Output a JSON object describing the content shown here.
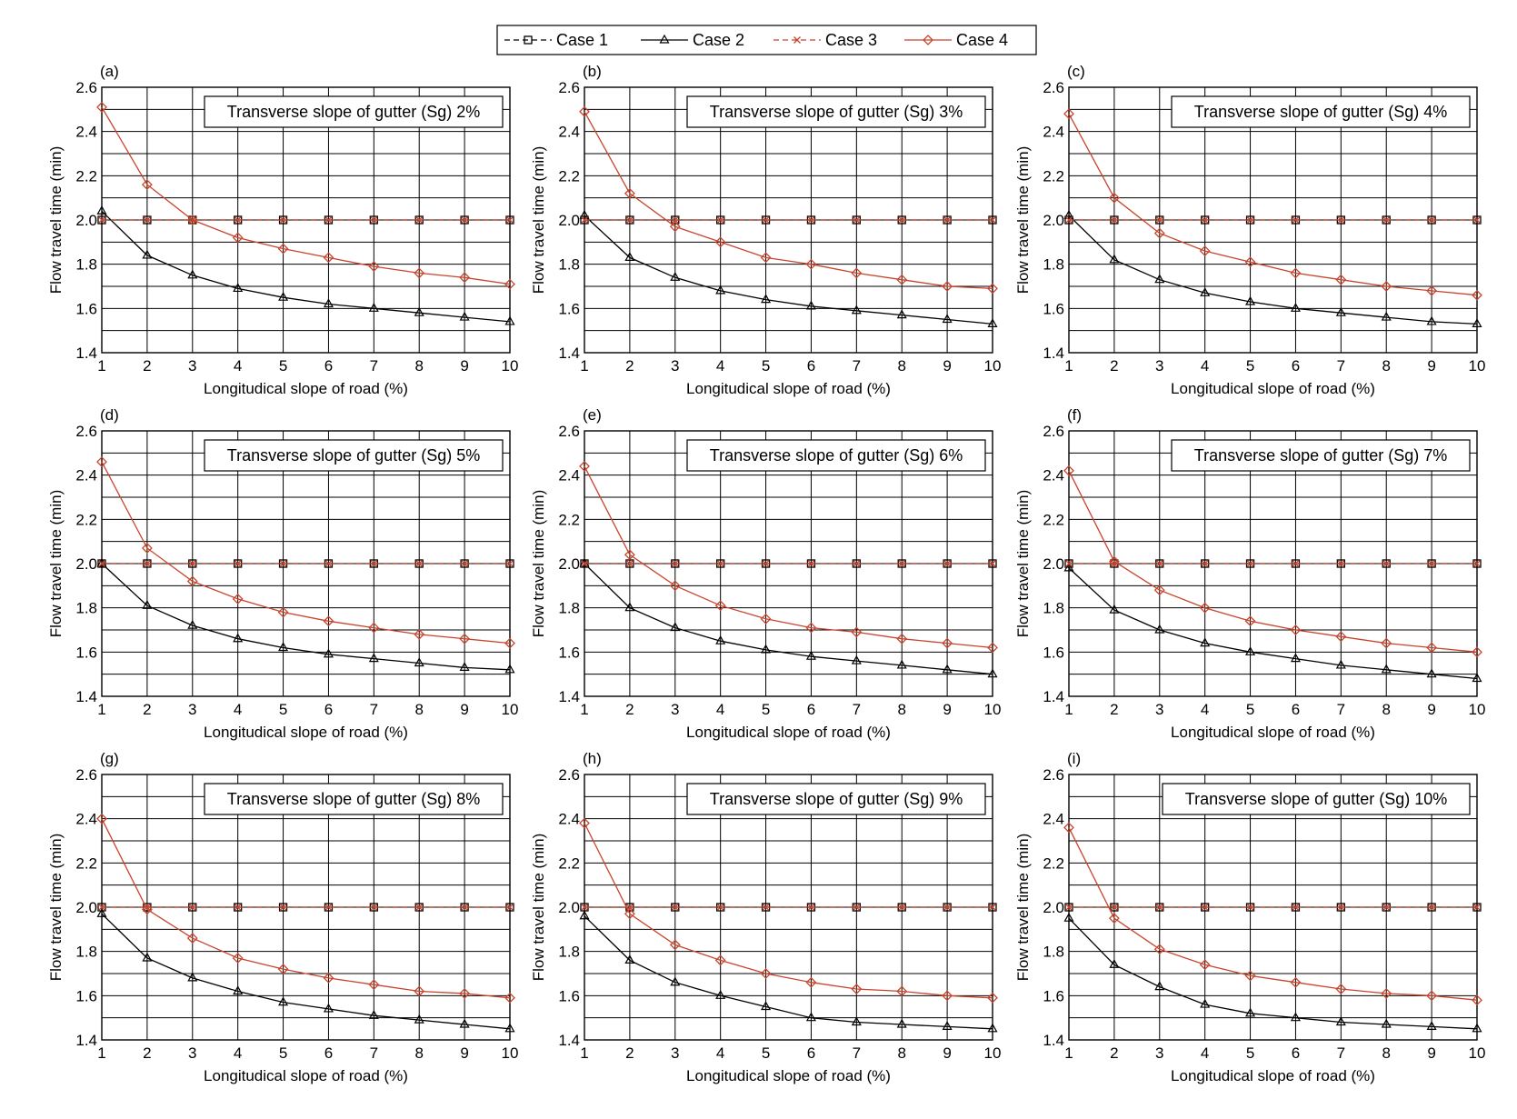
{
  "figure": {
    "legend": {
      "entries": [
        {
          "name": "Case 1",
          "color": "#000000",
          "dash": true,
          "marker": "square"
        },
        {
          "name": "Case 2",
          "color": "#000000",
          "dash": false,
          "marker": "triangle"
        },
        {
          "name": "Case 3",
          "color": "#c8442c",
          "dash": true,
          "marker": "x"
        },
        {
          "name": "Case 4",
          "color": "#c8442c",
          "dash": false,
          "marker": "diamond"
        }
      ]
    },
    "colors": {
      "black": "#000000",
      "red": "#c8442c",
      "grid": "#000000",
      "background": "#ffffff"
    }
  },
  "chart_data": [
    {
      "type": "line",
      "panel": "(a)",
      "title": "Transverse slope of gutter (Sg) 2%",
      "xlabel": "Longitudical slope of road (%)",
      "ylabel": "Flow travel time (min)",
      "xlim": [
        1,
        10
      ],
      "ylim": [
        1.4,
        2.6
      ],
      "x": [
        1,
        2,
        3,
        4,
        5,
        6,
        7,
        8,
        9,
        10
      ],
      "xticks": [
        "1",
        "2",
        "3",
        "4",
        "5",
        "6",
        "7",
        "8",
        "9",
        "10"
      ],
      "yticks": [
        "1.4",
        "1.6",
        "1.8",
        "2.0",
        "2.2",
        "2.4",
        "2.6"
      ],
      "series": [
        {
          "name": "Case 1",
          "values": [
            2.0,
            2.0,
            2.0,
            2.0,
            2.0,
            2.0,
            2.0,
            2.0,
            2.0,
            2.0
          ]
        },
        {
          "name": "Case 2",
          "values": [
            2.04,
            1.84,
            1.75,
            1.69,
            1.65,
            1.62,
            1.6,
            1.58,
            1.56,
            1.54
          ]
        },
        {
          "name": "Case 3",
          "values": [
            2.0,
            2.0,
            2.0,
            2.0,
            2.0,
            2.0,
            2.0,
            2.0,
            2.0,
            2.0
          ]
        },
        {
          "name": "Case 4",
          "values": [
            2.51,
            2.16,
            2.0,
            1.92,
            1.87,
            1.83,
            1.79,
            1.76,
            1.74,
            1.71
          ]
        }
      ]
    },
    {
      "type": "line",
      "panel": "(b)",
      "title": "Transverse slope of gutter (Sg) 3%",
      "xlabel": "Longitudical slope of road (%)",
      "ylabel": "Flow travel time (min)",
      "xlim": [
        1,
        10
      ],
      "ylim": [
        1.4,
        2.6
      ],
      "x": [
        1,
        2,
        3,
        4,
        5,
        6,
        7,
        8,
        9,
        10
      ],
      "xticks": [
        "1",
        "2",
        "3",
        "4",
        "5",
        "6",
        "7",
        "8",
        "9",
        "10"
      ],
      "yticks": [
        "1.4",
        "1.6",
        "1.8",
        "2.0",
        "2.2",
        "2.4",
        "2.6"
      ],
      "series": [
        {
          "name": "Case 1",
          "values": [
            2.0,
            2.0,
            2.0,
            2.0,
            2.0,
            2.0,
            2.0,
            2.0,
            2.0,
            2.0
          ]
        },
        {
          "name": "Case 2",
          "values": [
            2.02,
            1.83,
            1.74,
            1.68,
            1.64,
            1.61,
            1.59,
            1.57,
            1.55,
            1.53
          ]
        },
        {
          "name": "Case 3",
          "values": [
            2.0,
            2.0,
            2.0,
            2.0,
            2.0,
            2.0,
            2.0,
            2.0,
            2.0,
            2.0
          ]
        },
        {
          "name": "Case 4",
          "values": [
            2.49,
            2.12,
            1.97,
            1.9,
            1.83,
            1.8,
            1.76,
            1.73,
            1.7,
            1.69
          ]
        }
      ]
    },
    {
      "type": "line",
      "panel": "(c)",
      "title": "Transverse slope of gutter (Sg) 4%",
      "xlabel": "Longitudical slope of road (%)",
      "ylabel": "Flow travel time (min)",
      "xlim": [
        1,
        10
      ],
      "ylim": [
        1.4,
        2.6
      ],
      "x": [
        1,
        2,
        3,
        4,
        5,
        6,
        7,
        8,
        9,
        10
      ],
      "xticks": [
        "1",
        "2",
        "3",
        "4",
        "5",
        "6",
        "7",
        "8",
        "9",
        "10"
      ],
      "yticks": [
        "1.4",
        "1.6",
        "1.8",
        "2.0",
        "2.2",
        "2.4",
        "2.6"
      ],
      "series": [
        {
          "name": "Case 1",
          "values": [
            2.0,
            2.0,
            2.0,
            2.0,
            2.0,
            2.0,
            2.0,
            2.0,
            2.0,
            2.0
          ]
        },
        {
          "name": "Case 2",
          "values": [
            2.02,
            1.82,
            1.73,
            1.67,
            1.63,
            1.6,
            1.58,
            1.56,
            1.54,
            1.53
          ]
        },
        {
          "name": "Case 3",
          "values": [
            2.0,
            2.0,
            2.0,
            2.0,
            2.0,
            2.0,
            2.0,
            2.0,
            2.0,
            2.0
          ]
        },
        {
          "name": "Case 4",
          "values": [
            2.48,
            2.1,
            1.94,
            1.86,
            1.81,
            1.76,
            1.73,
            1.7,
            1.68,
            1.66
          ]
        }
      ]
    },
    {
      "type": "line",
      "panel": "(d)",
      "title": "Transverse slope of gutter (Sg) 5%",
      "xlabel": "Longitudical slope of road (%)",
      "ylabel": "Flow travel time (min)",
      "xlim": [
        1,
        10
      ],
      "ylim": [
        1.4,
        2.6
      ],
      "x": [
        1,
        2,
        3,
        4,
        5,
        6,
        7,
        8,
        9,
        10
      ],
      "xticks": [
        "1",
        "2",
        "3",
        "4",
        "5",
        "6",
        "7",
        "8",
        "9",
        "10"
      ],
      "yticks": [
        "1.4",
        "1.6",
        "1.8",
        "2.0",
        "2.2",
        "2.4",
        "2.6"
      ],
      "series": [
        {
          "name": "Case 1",
          "values": [
            2.0,
            2.0,
            2.0,
            2.0,
            2.0,
            2.0,
            2.0,
            2.0,
            2.0,
            2.0
          ]
        },
        {
          "name": "Case 2",
          "values": [
            2.0,
            1.81,
            1.72,
            1.66,
            1.62,
            1.59,
            1.57,
            1.55,
            1.53,
            1.52
          ]
        },
        {
          "name": "Case 3",
          "values": [
            2.0,
            2.0,
            2.0,
            2.0,
            2.0,
            2.0,
            2.0,
            2.0,
            2.0,
            2.0
          ]
        },
        {
          "name": "Case 4",
          "values": [
            2.46,
            2.07,
            1.92,
            1.84,
            1.78,
            1.74,
            1.71,
            1.68,
            1.66,
            1.64
          ]
        }
      ]
    },
    {
      "type": "line",
      "panel": "(e)",
      "title": "Transverse slope of gutter (Sg) 6%",
      "xlabel": "Longitudical slope of road (%)",
      "ylabel": "Flow travel time (min)",
      "xlim": [
        1,
        10
      ],
      "ylim": [
        1.4,
        2.6
      ],
      "x": [
        1,
        2,
        3,
        4,
        5,
        6,
        7,
        8,
        9,
        10
      ],
      "xticks": [
        "1",
        "2",
        "3",
        "4",
        "5",
        "6",
        "7",
        "8",
        "9",
        "10"
      ],
      "yticks": [
        "1.4",
        "1.6",
        "1.8",
        "2.0",
        "2.2",
        "2.4",
        "2.6"
      ],
      "series": [
        {
          "name": "Case 1",
          "values": [
            2.0,
            2.0,
            2.0,
            2.0,
            2.0,
            2.0,
            2.0,
            2.0,
            2.0,
            2.0
          ]
        },
        {
          "name": "Case 2",
          "values": [
            2.0,
            1.8,
            1.71,
            1.65,
            1.61,
            1.58,
            1.56,
            1.54,
            1.52,
            1.5
          ]
        },
        {
          "name": "Case 3",
          "values": [
            2.0,
            2.0,
            2.0,
            2.0,
            2.0,
            2.0,
            2.0,
            2.0,
            2.0,
            2.0
          ]
        },
        {
          "name": "Case 4",
          "values": [
            2.44,
            2.04,
            1.9,
            1.81,
            1.75,
            1.71,
            1.69,
            1.66,
            1.64,
            1.62
          ]
        }
      ]
    },
    {
      "type": "line",
      "panel": "(f)",
      "title": "Transverse slope of gutter (Sg) 7%",
      "xlabel": "Longitudical slope of road (%)",
      "ylabel": "Flow travel time (min)",
      "xlim": [
        1,
        10
      ],
      "ylim": [
        1.4,
        2.6
      ],
      "x": [
        1,
        2,
        3,
        4,
        5,
        6,
        7,
        8,
        9,
        10
      ],
      "xticks": [
        "1",
        "2",
        "3",
        "4",
        "5",
        "6",
        "7",
        "8",
        "9",
        "10"
      ],
      "yticks": [
        "1.4",
        "1.6",
        "1.8",
        "2.0",
        "2.2",
        "2.4",
        "2.6"
      ],
      "series": [
        {
          "name": "Case 1",
          "values": [
            2.0,
            2.0,
            2.0,
            2.0,
            2.0,
            2.0,
            2.0,
            2.0,
            2.0,
            2.0
          ]
        },
        {
          "name": "Case 2",
          "values": [
            1.98,
            1.79,
            1.7,
            1.64,
            1.6,
            1.57,
            1.54,
            1.52,
            1.5,
            1.48
          ]
        },
        {
          "name": "Case 3",
          "values": [
            2.0,
            2.0,
            2.0,
            2.0,
            2.0,
            2.0,
            2.0,
            2.0,
            2.0,
            2.0
          ]
        },
        {
          "name": "Case 4",
          "values": [
            2.42,
            2.01,
            1.88,
            1.8,
            1.74,
            1.7,
            1.67,
            1.64,
            1.62,
            1.6
          ]
        }
      ]
    },
    {
      "type": "line",
      "panel": "(g)",
      "title": "Transverse slope of gutter (Sg) 8%",
      "xlabel": "Longitudical slope of road (%)",
      "ylabel": "Flow travel time (min)",
      "xlim": [
        1,
        10
      ],
      "ylim": [
        1.4,
        2.6
      ],
      "x": [
        1,
        2,
        3,
        4,
        5,
        6,
        7,
        8,
        9,
        10
      ],
      "xticks": [
        "1",
        "2",
        "3",
        "4",
        "5",
        "6",
        "7",
        "8",
        "9",
        "10"
      ],
      "yticks": [
        "1.4",
        "1.6",
        "1.8",
        "2.0",
        "2.2",
        "2.4",
        "2.6"
      ],
      "series": [
        {
          "name": "Case 1",
          "values": [
            2.0,
            2.0,
            2.0,
            2.0,
            2.0,
            2.0,
            2.0,
            2.0,
            2.0,
            2.0
          ]
        },
        {
          "name": "Case 2",
          "values": [
            1.97,
            1.77,
            1.68,
            1.62,
            1.57,
            1.54,
            1.51,
            1.49,
            1.47,
            1.45
          ]
        },
        {
          "name": "Case 3",
          "values": [
            2.0,
            2.0,
            2.0,
            2.0,
            2.0,
            2.0,
            2.0,
            2.0,
            2.0,
            2.0
          ]
        },
        {
          "name": "Case 4",
          "values": [
            2.4,
            1.99,
            1.86,
            1.77,
            1.72,
            1.68,
            1.65,
            1.62,
            1.61,
            1.59
          ]
        }
      ]
    },
    {
      "type": "line",
      "panel": "(h)",
      "title": "Transverse slope of gutter (Sg) 9%",
      "xlabel": "Longitudical slope of road (%)",
      "ylabel": "Flow travel time (min)",
      "xlim": [
        1,
        10
      ],
      "ylim": [
        1.4,
        2.6
      ],
      "x": [
        1,
        2,
        3,
        4,
        5,
        6,
        7,
        8,
        9,
        10
      ],
      "xticks": [
        "1",
        "2",
        "3",
        "4",
        "5",
        "6",
        "7",
        "8",
        "9",
        "10"
      ],
      "yticks": [
        "1.4",
        "1.6",
        "1.8",
        "2.0",
        "2.2",
        "2.4",
        "2.6"
      ],
      "series": [
        {
          "name": "Case 1",
          "values": [
            2.0,
            2.0,
            2.0,
            2.0,
            2.0,
            2.0,
            2.0,
            2.0,
            2.0,
            2.0
          ]
        },
        {
          "name": "Case 2",
          "values": [
            1.96,
            1.76,
            1.66,
            1.6,
            1.55,
            1.5,
            1.48,
            1.47,
            1.46,
            1.45
          ]
        },
        {
          "name": "Case 3",
          "values": [
            2.0,
            2.0,
            2.0,
            2.0,
            2.0,
            2.0,
            2.0,
            2.0,
            2.0,
            2.0
          ]
        },
        {
          "name": "Case 4",
          "values": [
            2.38,
            1.97,
            1.83,
            1.76,
            1.7,
            1.66,
            1.63,
            1.62,
            1.6,
            1.59
          ]
        }
      ]
    },
    {
      "type": "line",
      "panel": "(i)",
      "title": "Transverse slope of gutter (Sg) 10%",
      "xlabel": "Longitudical slope of road (%)",
      "ylabel": "Flow travel time (min)",
      "xlim": [
        1,
        10
      ],
      "ylim": [
        1.4,
        2.6
      ],
      "x": [
        1,
        2,
        3,
        4,
        5,
        6,
        7,
        8,
        9,
        10
      ],
      "xticks": [
        "1",
        "2",
        "3",
        "4",
        "5",
        "6",
        "7",
        "8",
        "9",
        "10"
      ],
      "yticks": [
        "1.4",
        "1.6",
        "1.8",
        "2.0",
        "2.2",
        "2.4",
        "2.6"
      ],
      "series": [
        {
          "name": "Case 1",
          "values": [
            2.0,
            2.0,
            2.0,
            2.0,
            2.0,
            2.0,
            2.0,
            2.0,
            2.0,
            2.0
          ]
        },
        {
          "name": "Case 2",
          "values": [
            1.95,
            1.74,
            1.64,
            1.56,
            1.52,
            1.5,
            1.48,
            1.47,
            1.46,
            1.45
          ]
        },
        {
          "name": "Case 3",
          "values": [
            2.0,
            2.0,
            2.0,
            2.0,
            2.0,
            2.0,
            2.0,
            2.0,
            2.0,
            2.0
          ]
        },
        {
          "name": "Case 4",
          "values": [
            2.36,
            1.95,
            1.81,
            1.74,
            1.69,
            1.66,
            1.63,
            1.61,
            1.6,
            1.58
          ]
        }
      ]
    }
  ]
}
